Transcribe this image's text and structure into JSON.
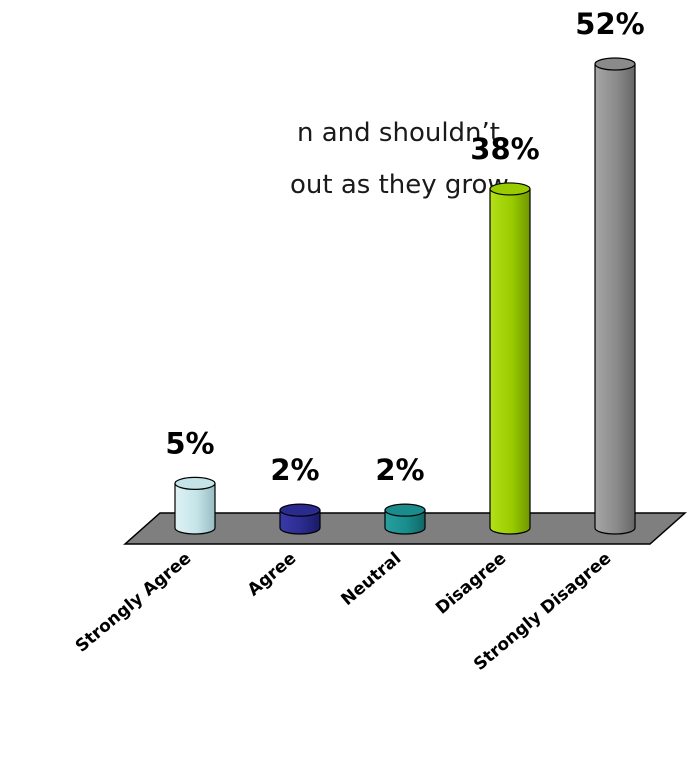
{
  "question": {
    "line1": "n and shouldn’t",
    "line2": "out as they grow."
  },
  "chart_data": {
    "type": "bar",
    "categories": [
      "Strongly Agree",
      "Agree",
      "Neutral",
      "Disagree",
      "Strongly Disagree"
    ],
    "values": [
      5,
      2,
      2,
      38,
      52
    ],
    "data_labels": [
      "5%",
      "2%",
      "2%",
      "38%",
      "52%"
    ],
    "colors": [
      "#c5e4e8",
      "#2b2b8f",
      "#1a8c8c",
      "#99cc00",
      "#8a8a8a"
    ],
    "floor_color": "#7f7f7f",
    "title": "",
    "xlabel": "",
    "ylabel": "",
    "ylim": [
      0,
      52
    ],
    "grid": false,
    "legend": "none"
  }
}
